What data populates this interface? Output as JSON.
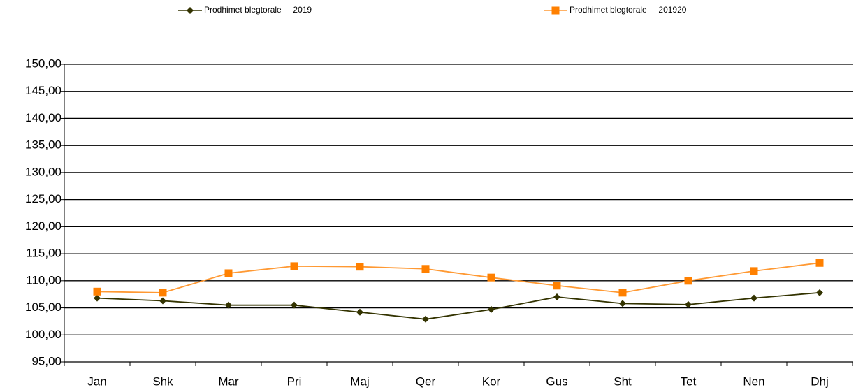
{
  "chart_data": {
    "type": "line",
    "categories": [
      "Jan",
      "Shk",
      "Mar",
      "Pri",
      "Maj",
      "Qer",
      "Kor",
      "Gus",
      "Sht",
      "Tet",
      "Nen",
      "Dhj"
    ],
    "series": [
      {
        "name": "Prodhimet blegtorale     2019",
        "color": "#333300",
        "marker": "diamond",
        "values": [
          106.8,
          106.3,
          105.5,
          105.5,
          104.2,
          102.9,
          104.7,
          107.0,
          105.8,
          105.6,
          106.8,
          107.8
        ]
      },
      {
        "name": "Prodhimet blegtorale     201920",
        "color": "#ff8000",
        "marker": "square",
        "values": [
          108.0,
          107.8,
          111.4,
          112.7,
          112.6,
          112.2,
          110.6,
          109.1,
          107.8,
          110.0,
          111.8,
          113.3
        ]
      }
    ],
    "ylim": [
      95,
      150
    ],
    "yticks": [
      {
        "value": 95,
        "label": "95,00"
      },
      {
        "value": 100,
        "label": "100,00"
      },
      {
        "value": 105,
        "label": "105,00"
      },
      {
        "value": 110,
        "label": "110,00"
      },
      {
        "value": 115,
        "label": "115,00"
      },
      {
        "value": 120,
        "label": "120,00"
      },
      {
        "value": 125,
        "label": "125,00"
      },
      {
        "value": 130,
        "label": "130,00"
      },
      {
        "value": 135,
        "label": "135,00"
      },
      {
        "value": 140,
        "label": "140,00"
      },
      {
        "value": 145,
        "label": "145,00"
      },
      {
        "value": 150,
        "label": "150,00"
      }
    ],
    "grid": true,
    "legend": "top"
  }
}
